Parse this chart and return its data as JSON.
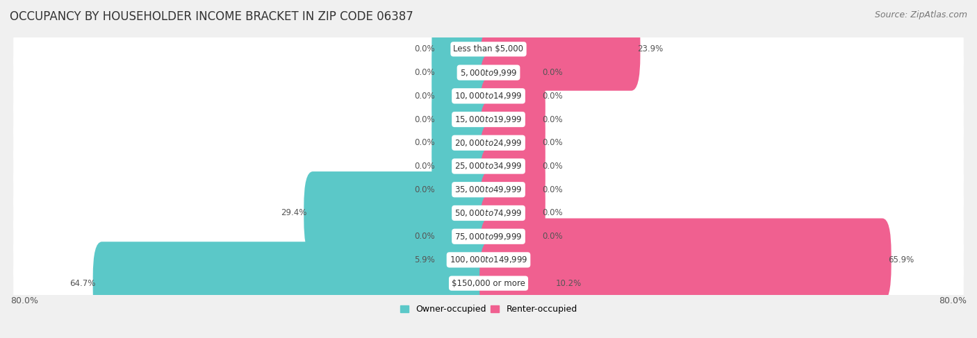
{
  "title": "OCCUPANCY BY HOUSEHOLDER INCOME BRACKET IN ZIP CODE 06387",
  "source": "Source: ZipAtlas.com",
  "categories": [
    "Less than $5,000",
    "$5,000 to $9,999",
    "$10,000 to $14,999",
    "$15,000 to $19,999",
    "$20,000 to $24,999",
    "$25,000 to $34,999",
    "$35,000 to $49,999",
    "$50,000 to $74,999",
    "$75,000 to $99,999",
    "$100,000 to $149,999",
    "$150,000 or more"
  ],
  "owner_values": [
    0.0,
    0.0,
    0.0,
    0.0,
    0.0,
    0.0,
    0.0,
    29.4,
    0.0,
    5.9,
    64.7
  ],
  "renter_values": [
    23.9,
    0.0,
    0.0,
    0.0,
    0.0,
    0.0,
    0.0,
    0.0,
    0.0,
    65.9,
    10.2
  ],
  "owner_color": "#5bc8c8",
  "renter_color": "#f06090",
  "bar_height": 0.55,
  "min_bar_width": 8.0,
  "xlim": [
    -80,
    80
  ],
  "bg_color": "#f0f0f0",
  "row_color": "#ffffff",
  "title_fontsize": 12,
  "label_fontsize": 8.5,
  "category_fontsize": 8.5,
  "source_fontsize": 9
}
